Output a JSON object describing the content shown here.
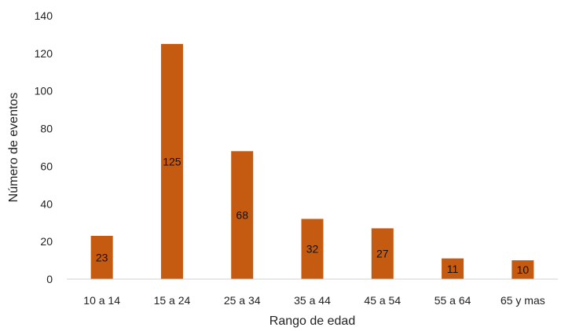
{
  "chart_data": {
    "type": "bar",
    "title": "",
    "xlabel": "Rango de edad",
    "ylabel": "Número de eventos",
    "categories": [
      "10 a 14",
      "15 a 24",
      "25 a 34",
      "35 a 44",
      "45 a 54",
      "55 a 64",
      "65 y mas"
    ],
    "values": [
      23,
      125,
      68,
      32,
      27,
      11,
      10
    ],
    "data_labels": [
      "23",
      "125",
      "68",
      "32",
      "27",
      "11",
      "10"
    ],
    "ylim": [
      0,
      140
    ],
    "yticks": [
      0,
      20,
      40,
      60,
      80,
      100,
      120,
      140
    ],
    "ytick_labels": [
      "0",
      "20",
      "40",
      "60",
      "80",
      "100",
      "120",
      "140"
    ],
    "grid": false,
    "legend": "none",
    "bar_color": "#C55A11"
  }
}
